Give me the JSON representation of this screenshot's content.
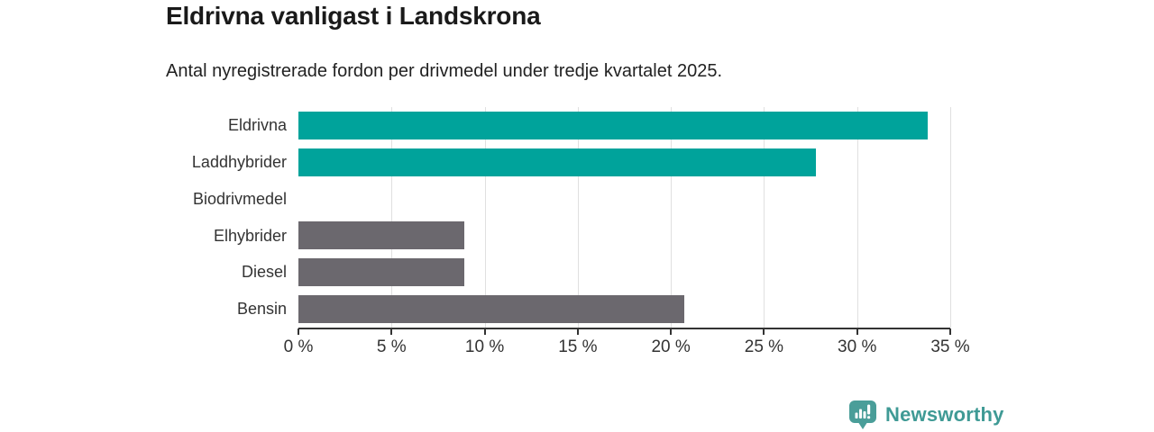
{
  "header": {
    "title": "Eldrivna vanligast i Landskrona",
    "subtitle": "Antal nyregistrerade fordon per drivmedel under tredje kvartalet 2025."
  },
  "chart_data": {
    "type": "bar",
    "orientation": "horizontal",
    "title": "Eldrivna vanligast i Landskrona",
    "subtitle": "Antal nyregistrerade fordon per drivmedel under tredje kvartalet 2025.",
    "categories": [
      "Eldrivna",
      "Laddhybrider",
      "Biodrivmedel",
      "Elhybrider",
      "Diesel",
      "Bensin"
    ],
    "values": [
      33.8,
      27.8,
      0,
      8.9,
      8.9,
      20.7
    ],
    "unit": "%",
    "bar_colors": [
      "#00a39b",
      "#00a39b",
      "#6b686e",
      "#6b686e",
      "#6b686e",
      "#6b686e"
    ],
    "highlight_color": "#00a39b",
    "default_color": "#6b686e",
    "xlabel": "",
    "ylabel": "",
    "xlim": [
      0,
      35
    ],
    "x_ticks": [
      0,
      5,
      10,
      15,
      20,
      25,
      30,
      35
    ],
    "x_tick_labels": [
      "0 %",
      "5 %",
      "10 %",
      "15 %",
      "20 %",
      "25 %",
      "30 %",
      "35 %"
    ],
    "grid": "vertical-gridlines",
    "legend": "none"
  },
  "branding": {
    "name": "Newsworthy",
    "text_color": "#3f9a95",
    "icon_color": "#4a9e99",
    "icon": "newsworthy-pin-barchart-icon"
  }
}
